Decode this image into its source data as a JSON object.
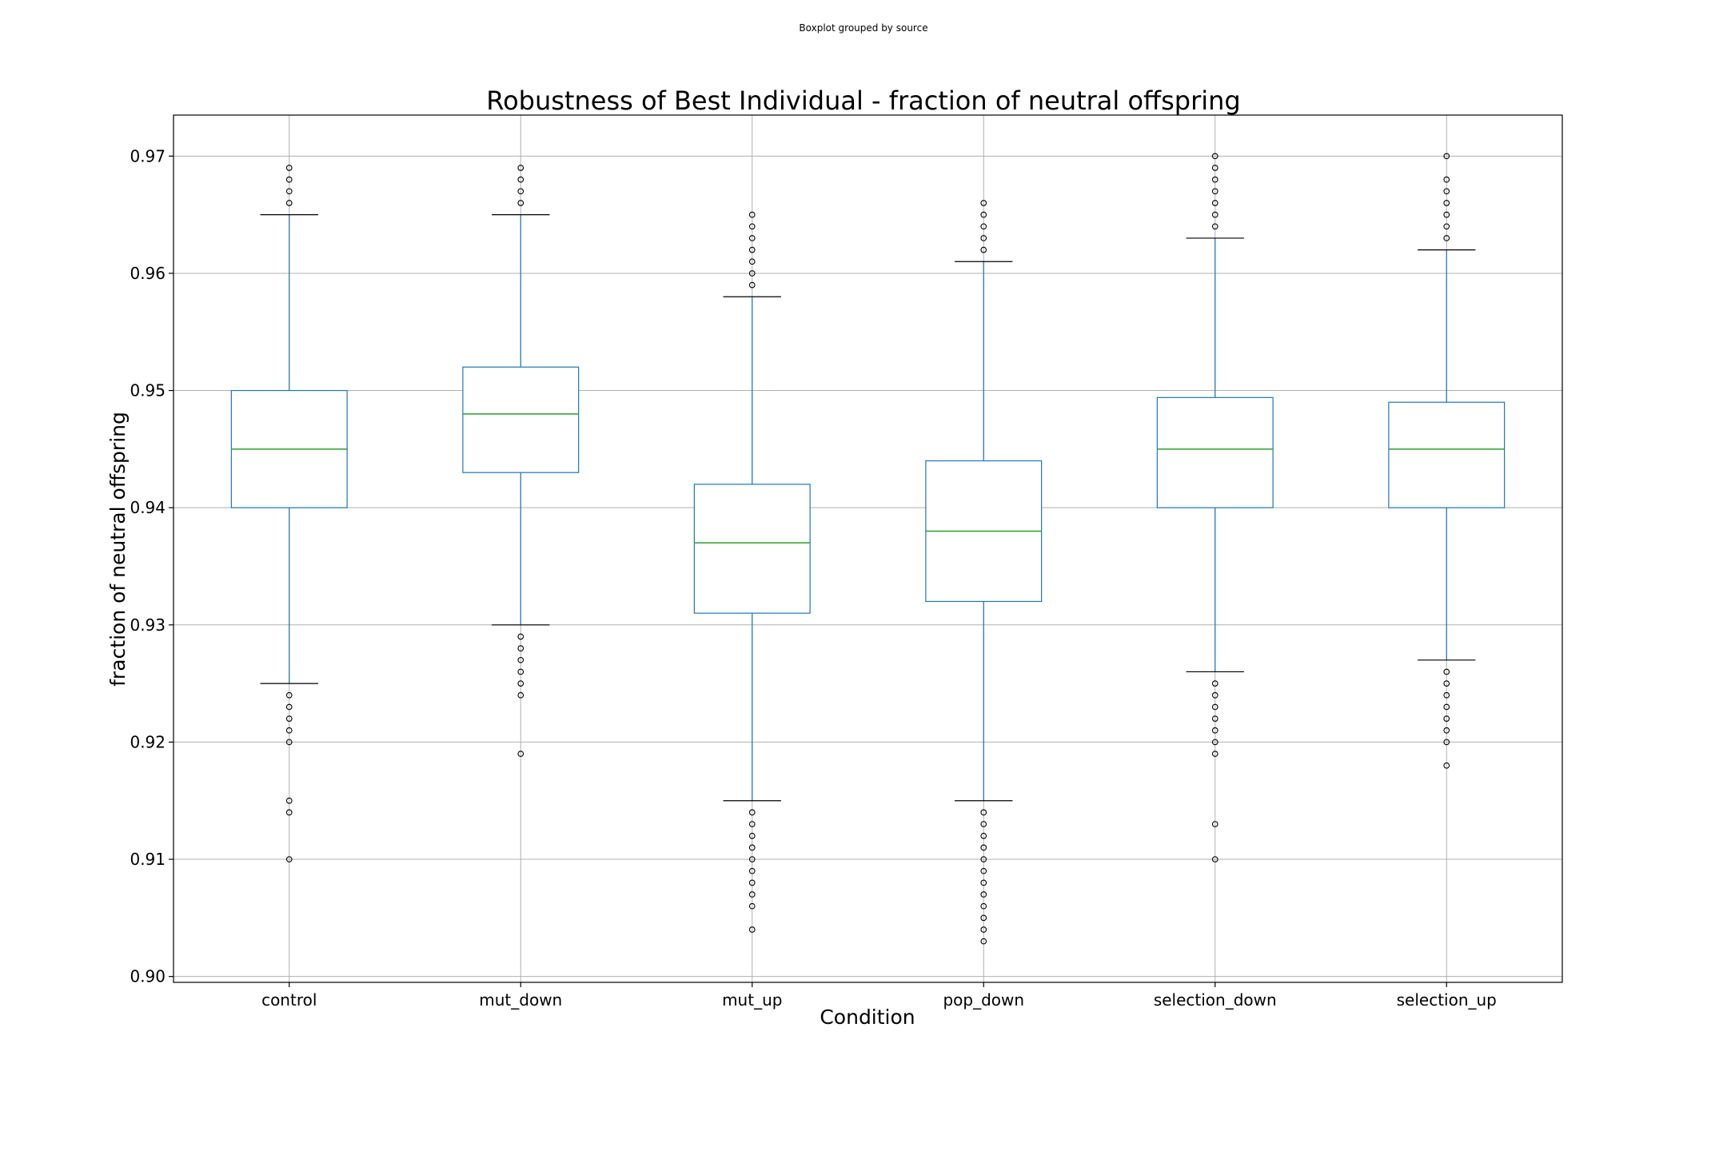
{
  "figure": {
    "suptitle": "Boxplot grouped by source"
  },
  "chart_data": {
    "type": "box",
    "title": "Robustness of Best Individual - fraction of neutral offspring",
    "xlabel": "Condition",
    "ylabel": "fraction of neutral offspring",
    "ylim": [
      0.8995,
      0.9735
    ],
    "yticks": [
      0.9,
      0.91,
      0.92,
      0.93,
      0.94,
      0.95,
      0.96,
      0.97
    ],
    "ytick_labels": [
      "0.90",
      "0.91",
      "0.92",
      "0.93",
      "0.94",
      "0.95",
      "0.96",
      "0.97"
    ],
    "grid": true,
    "colors": {
      "box": "#1f77b4",
      "median": "#2ca02c",
      "whisker": "#1f77b4",
      "cap": "#000000",
      "flier": "#000000",
      "grid": "#b0b0b0"
    },
    "categories": [
      "control",
      "mut_down",
      "mut_up",
      "pop_down",
      "selection_down",
      "selection_up"
    ],
    "boxes": [
      {
        "label": "control",
        "q1": 0.94,
        "median": 0.945,
        "q3": 0.95,
        "whisker_low": 0.925,
        "whisker_high": 0.965,
        "fliers": [
          0.966,
          0.967,
          0.968,
          0.969,
          0.924,
          0.923,
          0.922,
          0.921,
          0.92,
          0.915,
          0.914,
          0.91
        ]
      },
      {
        "label": "mut_down",
        "q1": 0.943,
        "median": 0.948,
        "q3": 0.952,
        "whisker_low": 0.93,
        "whisker_high": 0.965,
        "fliers": [
          0.966,
          0.967,
          0.968,
          0.969,
          0.929,
          0.928,
          0.927,
          0.926,
          0.925,
          0.924,
          0.919
        ]
      },
      {
        "label": "mut_up",
        "q1": 0.931,
        "median": 0.937,
        "q3": 0.942,
        "whisker_low": 0.915,
        "whisker_high": 0.958,
        "fliers": [
          0.959,
          0.96,
          0.961,
          0.962,
          0.963,
          0.964,
          0.965,
          0.914,
          0.913,
          0.912,
          0.911,
          0.91,
          0.909,
          0.908,
          0.907,
          0.906,
          0.904
        ]
      },
      {
        "label": "pop_down",
        "q1": 0.932,
        "median": 0.938,
        "q3": 0.944,
        "whisker_low": 0.915,
        "whisker_high": 0.961,
        "fliers": [
          0.962,
          0.963,
          0.964,
          0.965,
          0.966,
          0.914,
          0.913,
          0.912,
          0.911,
          0.91,
          0.909,
          0.908,
          0.907,
          0.906,
          0.905,
          0.904,
          0.903
        ]
      },
      {
        "label": "selection_down",
        "q1": 0.94,
        "median": 0.945,
        "q3": 0.9494,
        "whisker_low": 0.926,
        "whisker_high": 0.963,
        "fliers": [
          0.964,
          0.965,
          0.966,
          0.967,
          0.968,
          0.969,
          0.97,
          0.925,
          0.924,
          0.923,
          0.922,
          0.921,
          0.92,
          0.919,
          0.913,
          0.91
        ]
      },
      {
        "label": "selection_up",
        "q1": 0.94,
        "median": 0.945,
        "q3": 0.949,
        "whisker_low": 0.927,
        "whisker_high": 0.962,
        "fliers": [
          0.963,
          0.964,
          0.965,
          0.966,
          0.967,
          0.968,
          0.97,
          0.926,
          0.925,
          0.924,
          0.923,
          0.922,
          0.921,
          0.92,
          0.918
        ]
      }
    ]
  }
}
